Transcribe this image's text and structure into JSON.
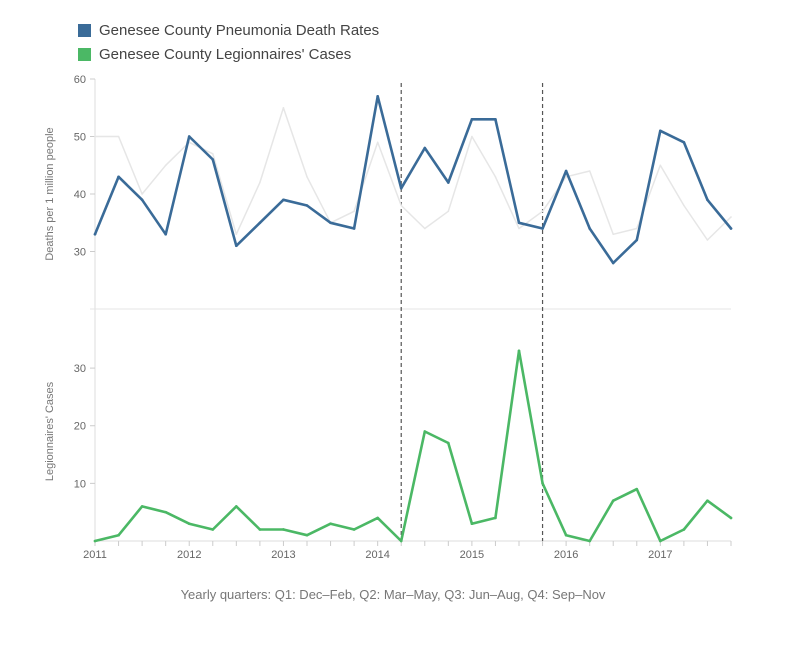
{
  "legend": {
    "items": [
      {
        "label": "Genesee County Pneumonia Death Rates",
        "color": "#3a6b98"
      },
      {
        "label": "Genesee County Legionnaires' Cases",
        "color": "#4bb865"
      }
    ]
  },
  "caption": "Yearly quarters: Q1: Dec–Feb, Q2: Mar–May, Q3: Jun–Aug, Q4: Sep–Nov",
  "chart_data": [
    {
      "type": "line",
      "title": "",
      "xlabel": "",
      "ylabel": "Deaths per 1 million people",
      "ylim": [
        20,
        60
      ],
      "yticks": [
        30,
        40,
        50,
        60
      ],
      "x_start": 2011.0,
      "x_step": 0.25,
      "series": [
        {
          "name": "Genesee County Pneumonia Death Rates",
          "color": "#3a6b98",
          "values": [
            33,
            43,
            39,
            33,
            50,
            46,
            31,
            35,
            39,
            38,
            35,
            34,
            57,
            41,
            48,
            42,
            53,
            53,
            35,
            34,
            44,
            34,
            28,
            32,
            51,
            49,
            39,
            34
          ]
        },
        {
          "name": "Comparison pneumonia death rates",
          "color": "#e6e6e6",
          "values": [
            50,
            50,
            40,
            45,
            49,
            47,
            33,
            42,
            55,
            43,
            35,
            37,
            49,
            38,
            34,
            37,
            50,
            43,
            34,
            37,
            43,
            44,
            33,
            34,
            45,
            38,
            32,
            36
          ]
        }
      ]
    },
    {
      "type": "line",
      "title": "",
      "xlabel": "Yearly quarters: Q1: Dec–Feb, Q2: Mar–May, Q3: Jun–Aug, Q4: Sep–Nov",
      "ylabel": "Legionnaires' Cases",
      "ylim": [
        0,
        38
      ],
      "yticks": [
        10,
        20,
        30
      ],
      "x_start": 2011.0,
      "x_step": 0.25,
      "xticks": [
        "2011",
        "2012",
        "2013",
        "2014",
        "2015",
        "2016",
        "2017"
      ],
      "vlines": [
        2014.25,
        2015.75
      ],
      "series": [
        {
          "name": "Genesee County Legionnaires' Cases",
          "color": "#4bb865",
          "values": [
            0,
            1,
            6,
            5,
            3,
            2,
            6,
            2,
            2,
            1,
            3,
            2,
            4,
            0,
            19,
            17,
            3,
            4,
            33,
            10,
            1,
            0,
            7,
            9,
            0,
            2,
            7,
            4
          ]
        }
      ]
    }
  ]
}
